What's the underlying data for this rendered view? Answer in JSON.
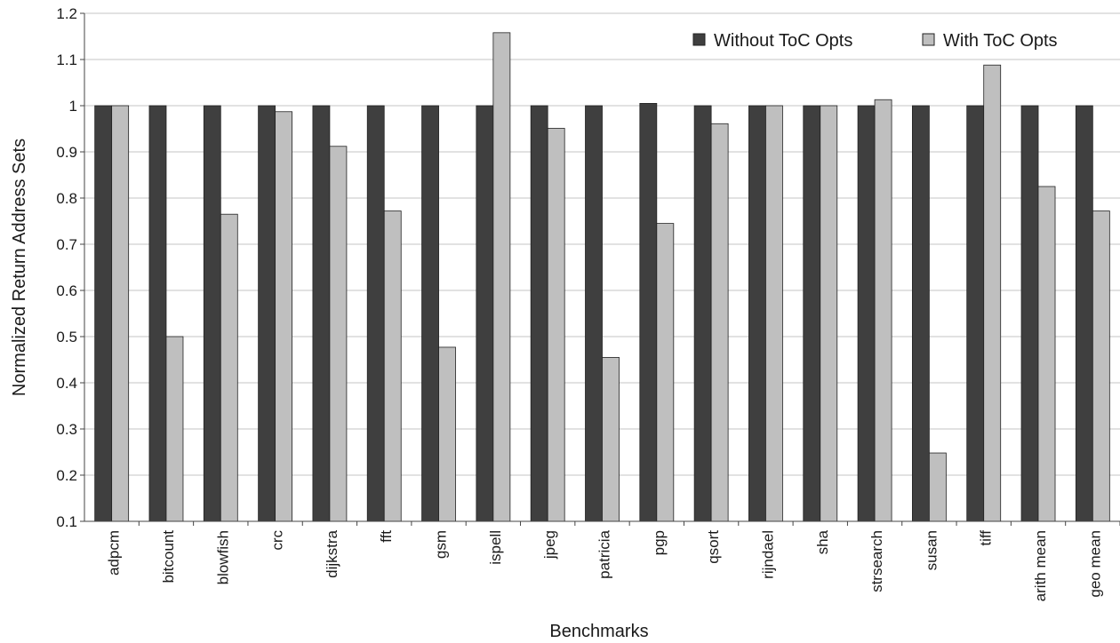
{
  "chart_data": {
    "type": "bar",
    "title": "",
    "xlabel": "Benchmarks",
    "ylabel": "Normalized Return Address Sets",
    "ylim": [
      0.1,
      1.2
    ],
    "yticks": [
      "0.1",
      "0.2",
      "0.3",
      "0.4",
      "0.5",
      "0.6",
      "0.7",
      "0.8",
      "0.9",
      "1",
      "1.1",
      "1.2"
    ],
    "grid": "horizontal",
    "legend_position": "top-right",
    "categories": [
      "adpcm",
      "bitcount",
      "blowfish",
      "crc",
      "dijkstra",
      "fft",
      "gsm",
      "ispell",
      "jpeg",
      "patricia",
      "pgp",
      "qsort",
      "rijndael",
      "sha",
      "strsearch",
      "susan",
      "tiff",
      "arith mean",
      "geo mean"
    ],
    "series": [
      {
        "name": "Without ToC Opts",
        "color": "#3f3f3f",
        "values": [
          1,
          1,
          1,
          1,
          1,
          1,
          1,
          1,
          1,
          1,
          1.005,
          1,
          1,
          1,
          1,
          1,
          1,
          1,
          1
        ]
      },
      {
        "name": "With ToC Opts",
        "color": "#bfbfbf",
        "values": [
          1,
          0.5,
          0.765,
          0.987,
          0.912,
          0.772,
          0.477,
          1.158,
          0.951,
          0.455,
          0.745,
          0.961,
          1,
          1,
          1.013,
          0.248,
          1.088,
          0.825,
          0.772
        ]
      }
    ]
  }
}
